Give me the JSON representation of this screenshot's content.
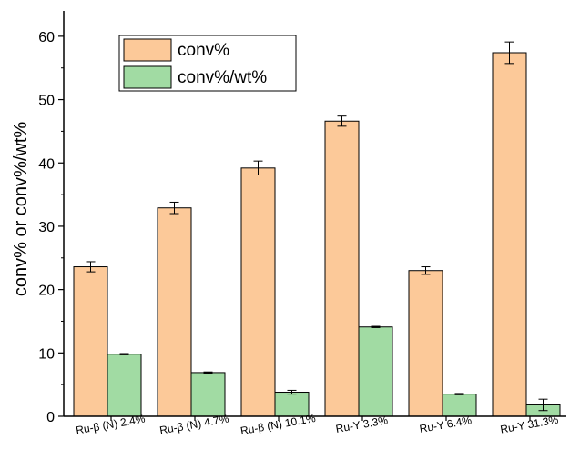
{
  "chart_data": {
    "type": "bar",
    "categories": [
      "Ru-β (N) 2.4%",
      "Ru-β (N) 4.7%",
      "Ru-β (N) 10.1%",
      "Ru-Y 3.3%",
      "Ru-Y 6.4%",
      "Ru-Y 31.3%"
    ],
    "series": [
      {
        "name": "conv%",
        "color": "#fcc999",
        "values": [
          23.6,
          32.9,
          39.2,
          46.6,
          23.0,
          57.4
        ],
        "errors": [
          0.8,
          0.9,
          1.1,
          0.8,
          0.6,
          1.7
        ]
      },
      {
        "name": "conv%/wt%",
        "color": "#a1dba3",
        "values": [
          9.8,
          6.9,
          3.8,
          14.1,
          3.5,
          1.8
        ],
        "errors": [
          0.1,
          0.1,
          0.3,
          0.1,
          0.1,
          0.9
        ]
      }
    ],
    "xlabel": "",
    "ylabel": "conv% or conv%/wt%",
    "ylim": [
      0,
      64
    ],
    "yticks": [
      0,
      10,
      20,
      30,
      40,
      50,
      60
    ],
    "grid": false,
    "legend": "top-left"
  }
}
